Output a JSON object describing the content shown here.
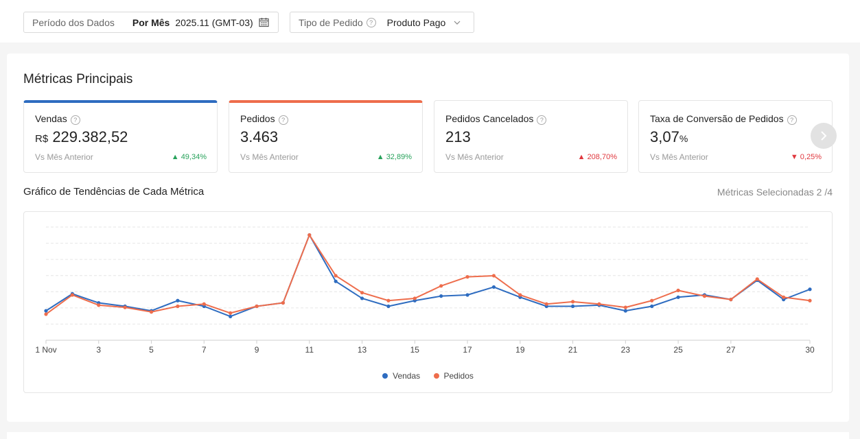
{
  "filters": {
    "period": {
      "label": "Período dos Dados",
      "mode": "Por Mês",
      "value": "2025.11 (GMT-03)",
      "icon": "calendar-icon"
    },
    "order_type": {
      "label": "Tipo de Pedido",
      "value": "Produto Pago",
      "icon": "chevron-down-icon"
    }
  },
  "panel": {
    "title": "Métricas Principais",
    "cards": [
      {
        "title": "Vendas",
        "prefix": "R$",
        "value": "229.382,52",
        "suffix": "",
        "sub": "Vs Mês Anterior",
        "change": "49,34%",
        "direction": "up",
        "color": "#27a25b",
        "selected_color": "#2e6cc0"
      },
      {
        "title": "Pedidos",
        "prefix": "",
        "value": "3.463",
        "suffix": "",
        "sub": "Vs Mês Anterior",
        "change": "32,89%",
        "direction": "up",
        "color": "#27a25b",
        "selected_color": "#ee6d4c"
      },
      {
        "title": "Pedidos Cancelados",
        "prefix": "",
        "value": "213",
        "suffix": "",
        "sub": "Vs Mês Anterior",
        "change": "208,70%",
        "direction": "up",
        "color": "#e0383e"
      },
      {
        "title": "Taxa de Conversão de Pedidos",
        "prefix": "",
        "value": "3,07",
        "suffix": "%",
        "sub": "Vs Mês Anterior",
        "change": "0,25%",
        "direction": "down",
        "color": "#e0383e"
      }
    ],
    "trend_title": "Gráfico de Tendências de Cada Métrica",
    "selected_metrics": "Métricas Selecionadas 2 /4"
  },
  "chart_data": {
    "type": "line",
    "x": [
      1,
      2,
      3,
      4,
      5,
      6,
      7,
      8,
      9,
      10,
      11,
      12,
      13,
      14,
      15,
      16,
      17,
      18,
      19,
      20,
      21,
      22,
      23,
      24,
      25,
      26,
      27,
      28,
      29,
      30
    ],
    "x_tick_labels": [
      "1 Nov",
      "3",
      "5",
      "7",
      "9",
      "11",
      "13",
      "15",
      "17",
      "19",
      "21",
      "23",
      "25",
      "27",
      "30"
    ],
    "x_tick_values": [
      1,
      3,
      5,
      7,
      9,
      11,
      13,
      15,
      17,
      19,
      21,
      23,
      25,
      27,
      30
    ],
    "ylim": [
      0,
      10
    ],
    "grid": true,
    "y_axis_labels_visible": false,
    "legend_position": "bottom",
    "series": [
      {
        "name": "Vendas",
        "color": "#2e6cc0",
        "values": [
          2.6,
          4.1,
          3.3,
          3.0,
          2.6,
          3.5,
          3.0,
          2.1,
          3.0,
          3.3,
          9.3,
          5.2,
          3.7,
          3.0,
          3.5,
          3.9,
          4.0,
          4.7,
          3.8,
          3.0,
          3.0,
          3.1,
          2.6,
          3.0,
          3.8,
          4.0,
          3.6,
          5.3,
          3.6,
          4.5
        ]
      },
      {
        "name": "Pedidos",
        "color": "#ee6d4c",
        "values": [
          2.3,
          4.0,
          3.1,
          2.9,
          2.5,
          3.0,
          3.2,
          2.4,
          3.0,
          3.3,
          9.3,
          5.7,
          4.2,
          3.5,
          3.7,
          4.8,
          5.6,
          5.7,
          4.0,
          3.2,
          3.4,
          3.2,
          2.9,
          3.5,
          4.4,
          3.9,
          3.6,
          5.4,
          3.8,
          3.5
        ]
      }
    ]
  }
}
